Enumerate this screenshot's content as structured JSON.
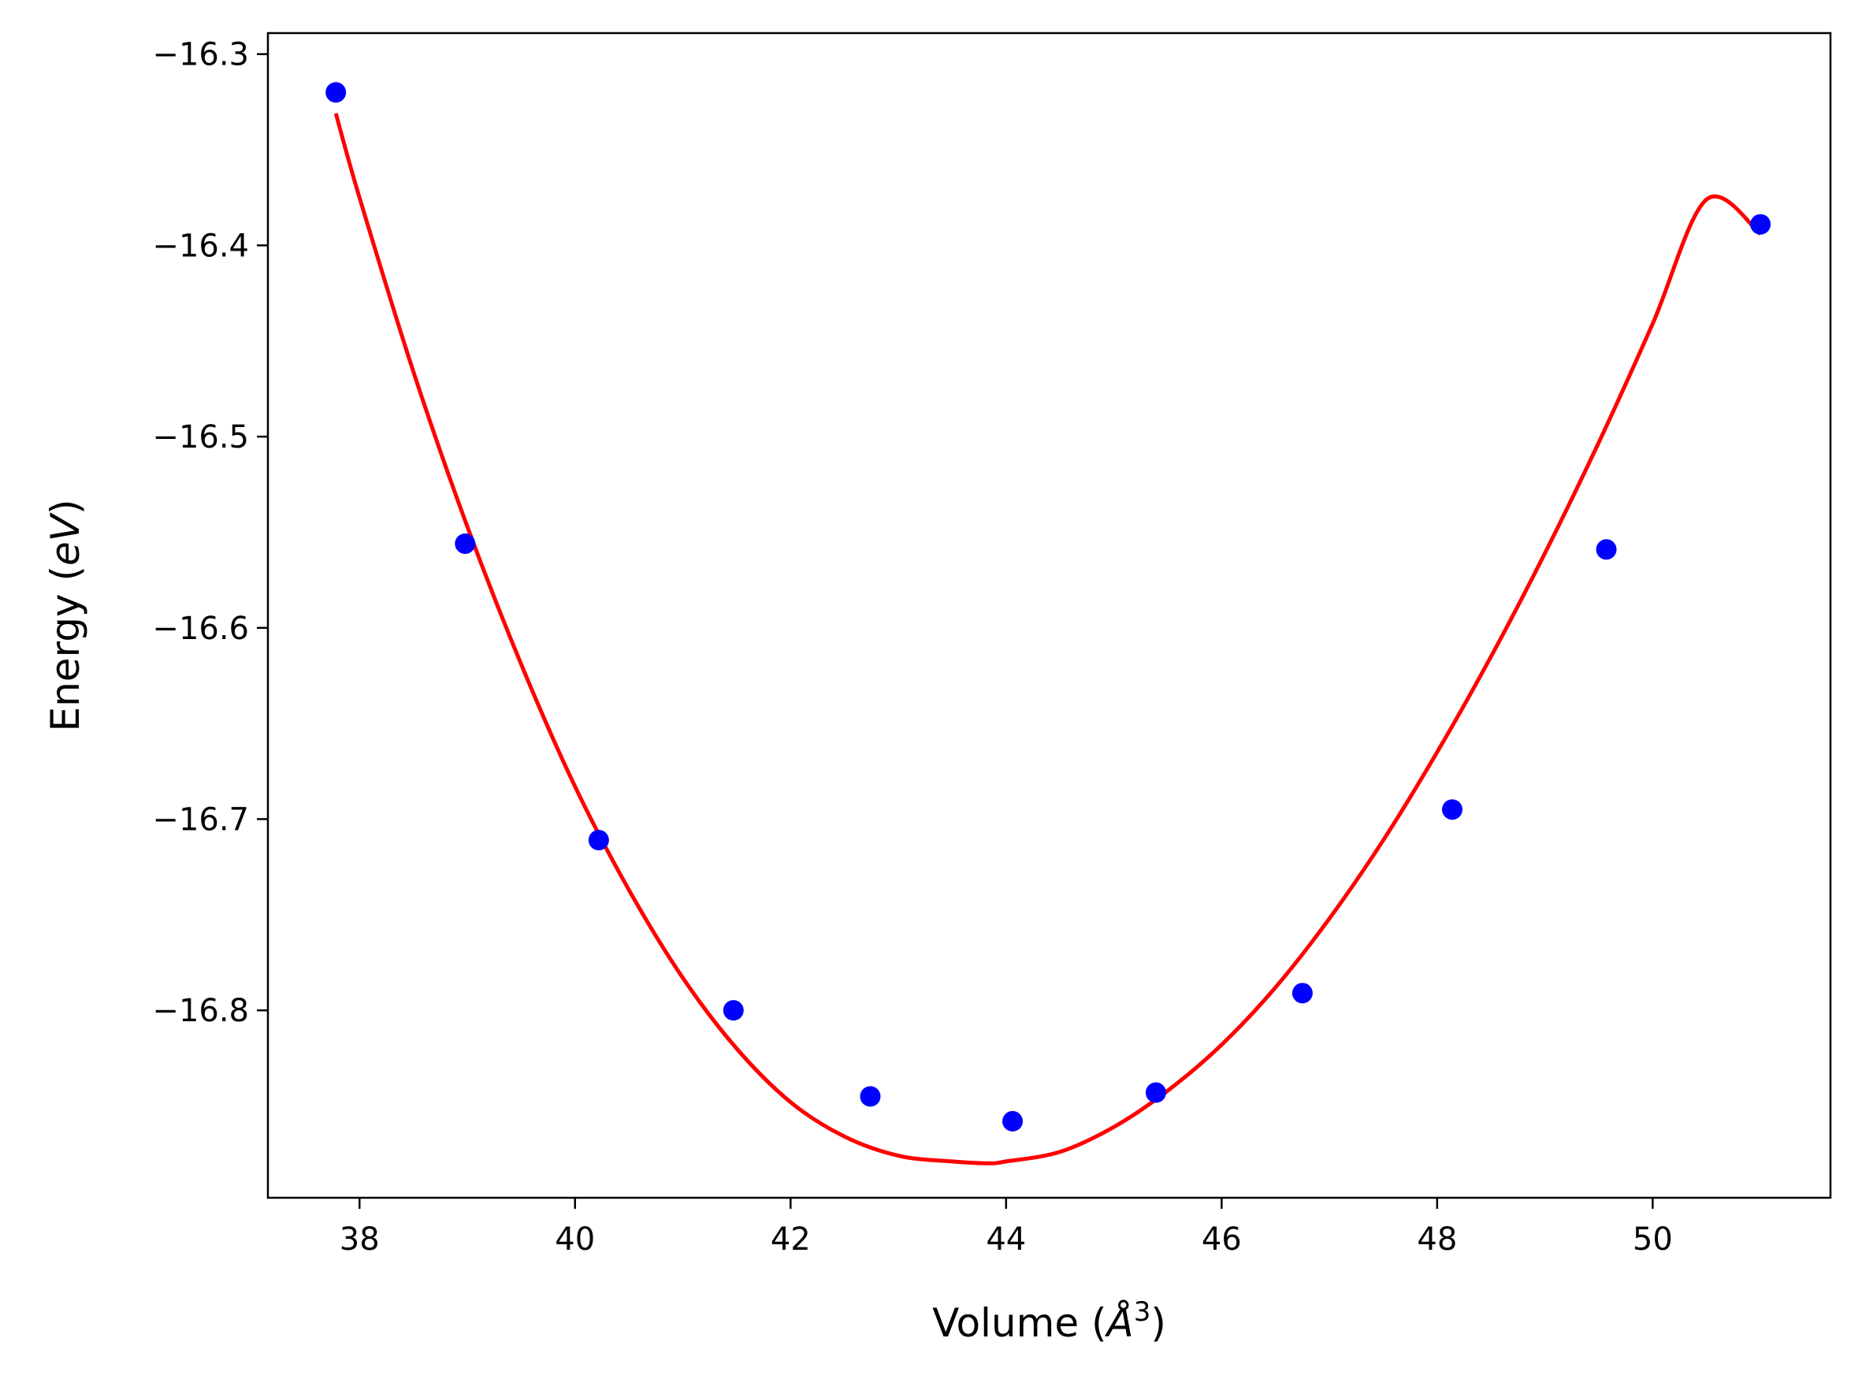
{
  "chart_data": {
    "type": "scatter",
    "xlabel": {
      "prefix": "Volume (",
      "symbol": "Å",
      "sup": "3",
      "suffix": ")"
    },
    "ylabel": {
      "prefix": "Energy (",
      "unit": "eV",
      "suffix": ")"
    },
    "xlim": [
      37.15,
      51.65
    ],
    "ylim": [
      -16.898,
      -16.289
    ],
    "xticks": [
      38,
      40,
      42,
      44,
      46,
      48,
      50
    ],
    "xtick_labels": [
      "38",
      "40",
      "42",
      "44",
      "46",
      "48",
      "50"
    ],
    "yticks": [
      -16.8,
      -16.7,
      -16.6,
      -16.5,
      -16.4,
      -16.3
    ],
    "ytick_labels": [
      "−16.8",
      "−16.7",
      "−16.6",
      "−16.5",
      "−16.4",
      "−16.3"
    ],
    "grid": false,
    "series": [
      {
        "type": "scatter",
        "color": "#0000ff",
        "x": [
          37.78,
          38.98,
          40.22,
          41.47,
          42.74,
          44.06,
          45.39,
          46.75,
          48.14,
          49.57,
          51.0
        ],
        "y": [
          -16.32,
          -16.556,
          -16.711,
          -16.8,
          -16.845,
          -16.858,
          -16.843,
          -16.791,
          -16.695,
          -16.559,
          -16.389
        ]
      },
      {
        "type": "line",
        "color": "#ff0000",
        "x": [
          37.78,
          38.0,
          38.5,
          39.0,
          39.5,
          40.0,
          40.5,
          41.0,
          41.5,
          42.0,
          42.5,
          43.0,
          43.5,
          43.84,
          44.0,
          44.5,
          45.0,
          45.5,
          46.0,
          46.5,
          47.0,
          47.5,
          48.0,
          48.5,
          49.0,
          49.5,
          50.0,
          50.5,
          51.0
        ],
        "y": [
          -16.331,
          -16.375,
          -16.466,
          -16.547,
          -16.619,
          -16.683,
          -16.737,
          -16.783,
          -16.82,
          -16.848,
          -16.866,
          -16.876,
          -16.879,
          -16.88,
          -16.879,
          -16.874,
          -16.861,
          -16.842,
          -16.818,
          -16.788,
          -16.752,
          -16.711,
          -16.665,
          -16.615,
          -16.561,
          -16.503,
          -16.441,
          -16.376,
          -16.394
        ]
      }
    ]
  }
}
